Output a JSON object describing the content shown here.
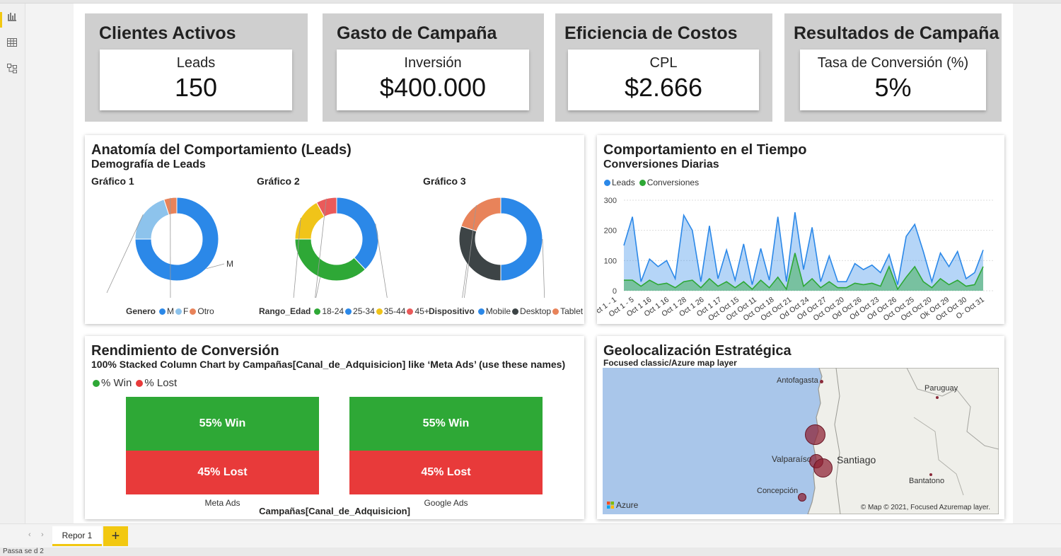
{
  "kpis": [
    {
      "title": "Clientes Activos",
      "label": "Leads",
      "value": "150"
    },
    {
      "title": "Gasto de Campaña",
      "label": "Inversión",
      "value": "$400.000"
    },
    {
      "title": "Eficiencia de Costos",
      "label": "CPL",
      "value": "$2.666"
    },
    {
      "title": "Resultados de Campaña",
      "label": "Tasa de Conversión (%)",
      "value": "5%"
    }
  ],
  "anatomy": {
    "title": "Anatomía del Comportamiento (Leads)",
    "subtitle": "Demografía de Leads",
    "charts": [
      {
        "title": "Gráfico 1",
        "legend_title": "Genero",
        "slices": [
          {
            "label": "M",
            "value": 75,
            "color": "#2b88e8"
          },
          {
            "label": "F",
            "value": 20,
            "color": "#8dc3ec"
          },
          {
            "label": "Otro",
            "value": 5,
            "color": "#e8835a"
          }
        ]
      },
      {
        "title": "Gráfico 2",
        "legend_title": "Rango_Edad",
        "slices": [
          {
            "label": "25-34",
            "value": 38,
            "color": "#2b88e8"
          },
          {
            "label": "18-24",
            "value": 37,
            "color": "#2ea836"
          },
          {
            "label": "35-44",
            "value": 17,
            "color": "#f0c419"
          },
          {
            "label": "45+",
            "value": 8,
            "color": "#ea5a5a"
          }
        ]
      },
      {
        "title": "Gráfico 3",
        "legend_title": "Dispositivo",
        "slices": [
          {
            "label": "Mobile",
            "value": 50,
            "color": "#2b88e8"
          },
          {
            "label": "Desktop",
            "value": 30,
            "color": "#3d4446"
          },
          {
            "label": "Tablet",
            "value": 20,
            "color": "#e8835a"
          }
        ]
      }
    ]
  },
  "time": {
    "title": "Comportamiento en el Tiempo",
    "subtitle": "Conversiones Diarias",
    "legend": [
      {
        "label": "Leads",
        "color": "#2b88e8"
      },
      {
        "label": "Conversiones",
        "color": "#2ea836"
      }
    ],
    "yticks": [
      "300",
      "200",
      "100",
      "0"
    ],
    "xticks": [
      "Oct 1 - 1",
      "Oct 1 - 5",
      "Oct 1 16",
      "Oct 1 16",
      "Oct 1 28",
      "Oct 1 26",
      "Oct 1 17",
      "Oct Oct 15",
      "Oct Oct 11",
      "Oct Oct 18",
      "Oct Oct 21",
      "Od Oct 24",
      "Od Oct 27",
      "Oct Oct 20",
      "Od Oct 26",
      "Od Oct 23",
      "Od Oct 26",
      "Oct Oct 25",
      "Oct Oct 20",
      "Ok Oct 29",
      "Oct Oct 30",
      "O- Oct 31"
    ]
  },
  "chart_data": {
    "type": "area",
    "ylim": [
      0,
      300
    ],
    "series": [
      {
        "name": "Leads",
        "values": [
          150,
          245,
          30,
          105,
          80,
          100,
          40,
          250,
          200,
          30,
          215,
          40,
          135,
          35,
          155,
          20,
          140,
          35,
          245,
          30,
          260,
          70,
          210,
          30,
          115,
          30,
          30,
          90,
          70,
          85,
          60,
          120,
          20,
          180,
          220,
          130,
          30,
          125,
          80,
          130,
          40,
          60,
          135
        ]
      },
      {
        "name": "Conversiones",
        "values": [
          35,
          35,
          15,
          35,
          20,
          25,
          10,
          30,
          35,
          10,
          40,
          15,
          30,
          10,
          30,
          5,
          35,
          10,
          45,
          5,
          125,
          15,
          40,
          10,
          30,
          10,
          10,
          25,
          20,
          25,
          15,
          80,
          5,
          45,
          80,
          30,
          10,
          40,
          20,
          35,
          15,
          20,
          80
        ]
      }
    ]
  },
  "conversion": {
    "title": "Rendimiento de Conversión",
    "subtitle": "100% Stacked Column Chart by Campañas[Canal_de_Adquisicion] like ‘Meta Ads’ (use these names)",
    "legend": [
      {
        "label": "% Win",
        "color": "#2ea836"
      },
      {
        "label": "% Lost",
        "color": "#e83a3a"
      }
    ],
    "columns": [
      {
        "name": "Meta Ads",
        "win": 55,
        "lost": 45,
        "win_label": "55% Win",
        "lost_label": "45% Lost"
      },
      {
        "name": "Google Ads",
        "win": 55,
        "lost": 45,
        "win_label": "55% Win",
        "lost_label": "45% Lost"
      }
    ],
    "xlabel": "Campañas[Canal_de_Adquisicion]"
  },
  "geo": {
    "title": "Geolocalización Estratégica",
    "subtitle": "Focused classic/Azure map layer",
    "places": [
      {
        "label": "Antofagasta"
      },
      {
        "label": "Paruguay"
      },
      {
        "label": "Valparaíso"
      },
      {
        "label": "Santiago"
      },
      {
        "label": "Bantatono"
      },
      {
        "label": "Concepción"
      }
    ],
    "brand": "Azure",
    "copyright": "© Map © 2021, Focused Azuremap layer."
  },
  "tabs": {
    "report": "Repor 1",
    "add": "+"
  },
  "status": "Passa se d 2"
}
